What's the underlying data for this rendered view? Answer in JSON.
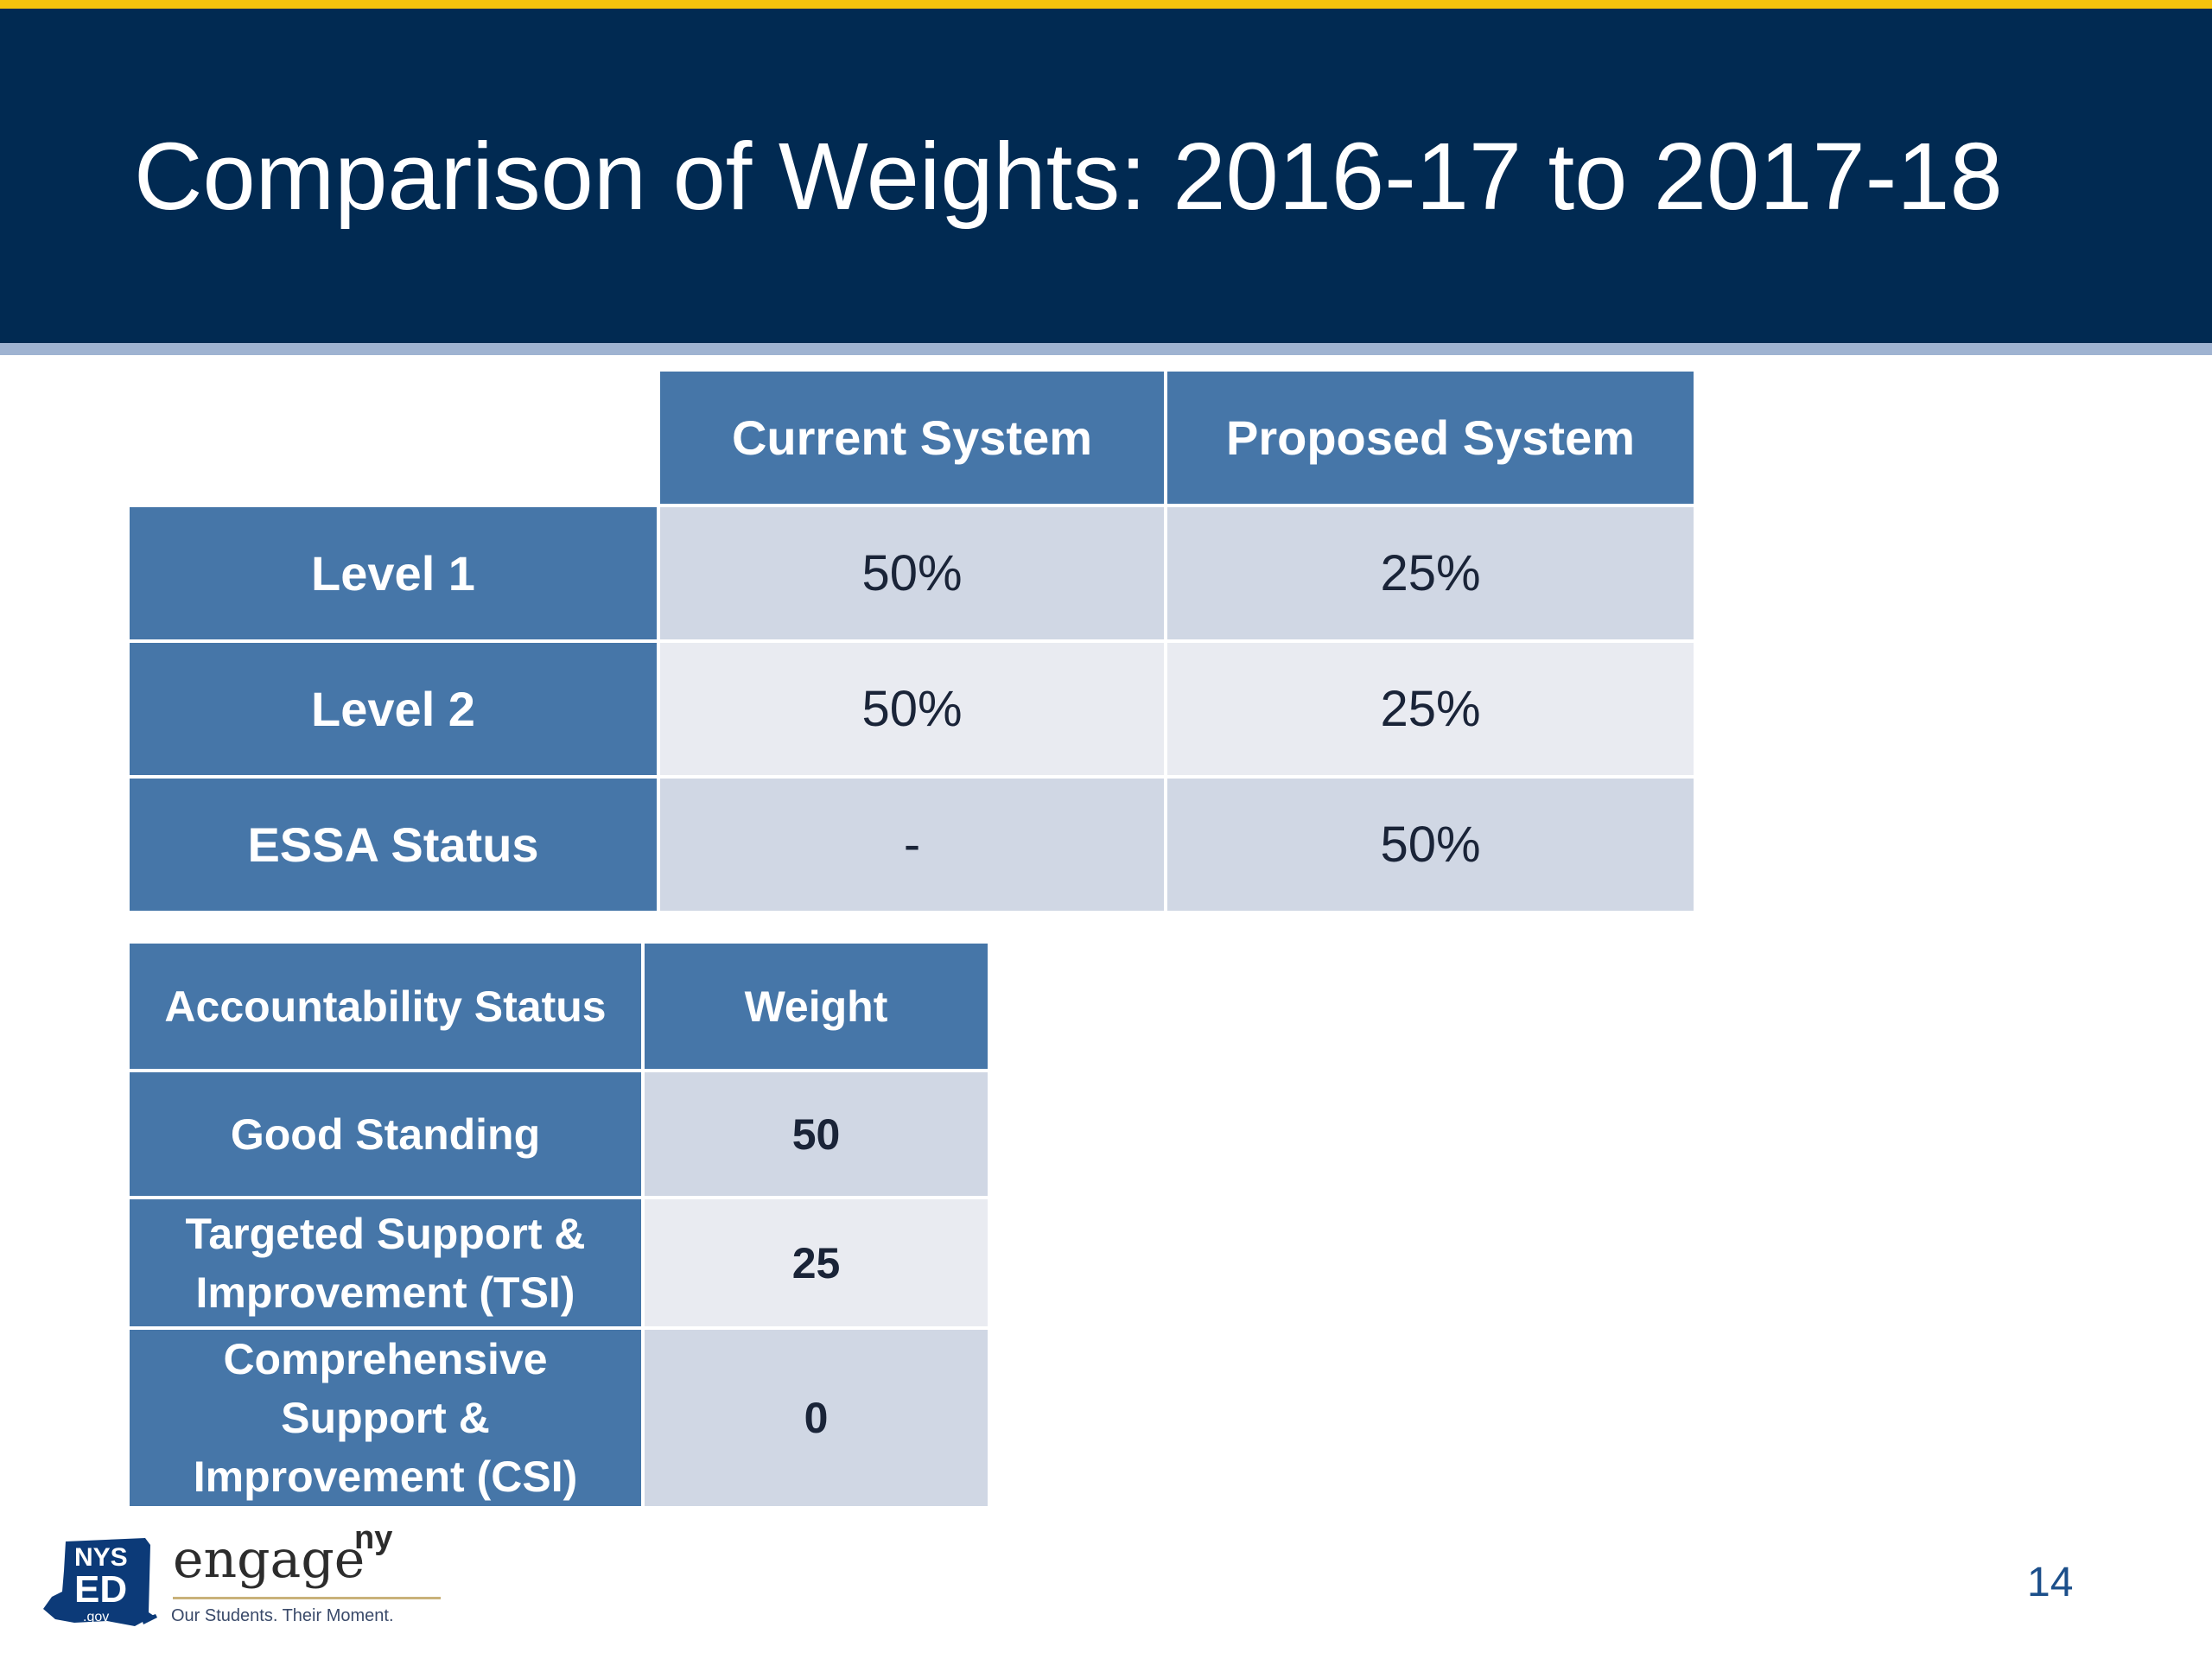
{
  "slide": {
    "title": "Comparison of Weights: 2016-17 to 2017-18",
    "page_number": "14"
  },
  "weights_table": {
    "columns": [
      "Current System",
      "Proposed System"
    ],
    "rows": [
      {
        "label": "Level 1",
        "current": "50%",
        "proposed": "25%"
      },
      {
        "label": "Level 2",
        "current": "50%",
        "proposed": "25%"
      },
      {
        "label": "ESSA Status",
        "current": "-",
        "proposed": "50%"
      }
    ]
  },
  "status_table": {
    "columns": [
      "Accountability Status",
      "Weight"
    ],
    "rows": [
      {
        "label_lines": [
          "Good Standing"
        ],
        "weight": "50"
      },
      {
        "label_lines": [
          "Targeted Support &",
          "Improvement (TSI)"
        ],
        "weight": "25"
      },
      {
        "label_lines": [
          "Comprehensive",
          "Support &",
          "Improvement (CSI)"
        ],
        "weight": "0"
      }
    ]
  },
  "footer": {
    "logo": {
      "nys": "NYS",
      "ed": "ED",
      "gov": ".gov",
      "brand": "engage",
      "brand_sup": "ny",
      "tagline": "Our Students. Their Moment."
    }
  },
  "colors": {
    "header_bg": "#012a52",
    "accent_stripe": "#f4c20d",
    "table_header": "#4676a8",
    "cell_dark": "#d0d7e4",
    "cell_light": "#e9ebf1",
    "page_number": "#1c4f8a"
  },
  "icons": {
    "logo_state_shape": "new-york-state-shape-icon"
  }
}
